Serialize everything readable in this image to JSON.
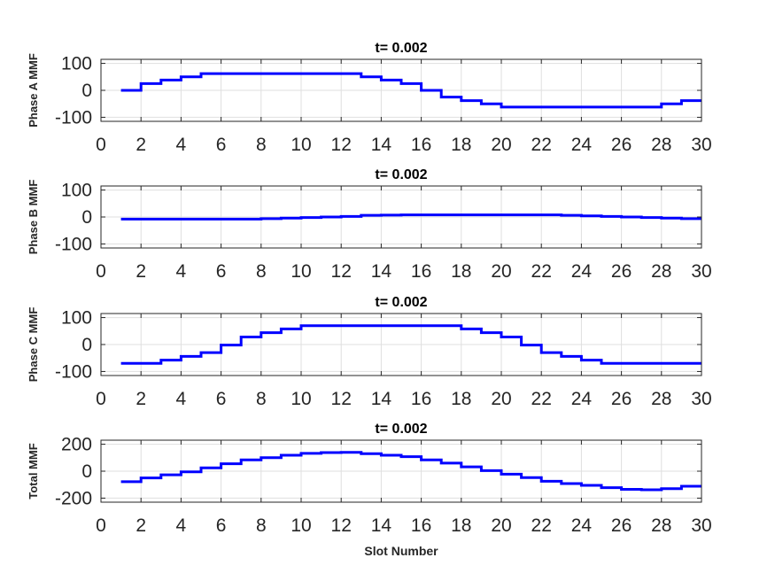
{
  "chart_data": [
    {
      "type": "line",
      "title": "t= 0.002",
      "ylabel": "Phase A MMF",
      "xlabel": "",
      "xlim": [
        0,
        30
      ],
      "ylim": [
        -115,
        115
      ],
      "xticks": [
        0,
        2,
        4,
        6,
        8,
        10,
        12,
        14,
        16,
        18,
        20,
        22,
        24,
        26,
        28,
        30
      ],
      "yticks": [
        -100,
        0,
        100
      ],
      "grid": true,
      "step": true,
      "color": "#0000ff",
      "x": [
        1,
        2,
        3,
        4,
        5,
        6,
        7,
        8,
        9,
        10,
        11,
        12,
        13,
        14,
        15,
        16,
        17,
        18,
        19,
        20,
        21,
        22,
        23,
        24,
        25,
        26,
        27,
        28,
        29,
        30
      ],
      "values": [
        0,
        25,
        38,
        50,
        62,
        62,
        62,
        62,
        62,
        62,
        62,
        62,
        50,
        38,
        25,
        0,
        -25,
        -38,
        -50,
        -62,
        -62,
        -62,
        -62,
        -62,
        -62,
        -62,
        -62,
        -50,
        -38,
        -38
      ]
    },
    {
      "type": "line",
      "title": "t= 0.002",
      "ylabel": "Phase B MMF",
      "xlabel": "",
      "xlim": [
        0,
        30
      ],
      "ylim": [
        -115,
        115
      ],
      "xticks": [
        0,
        2,
        4,
        6,
        8,
        10,
        12,
        14,
        16,
        18,
        20,
        22,
        24,
        26,
        28,
        30
      ],
      "yticks": [
        -100,
        0,
        100
      ],
      "grid": true,
      "step": true,
      "color": "#0000ff",
      "x": [
        1,
        2,
        3,
        4,
        5,
        6,
        7,
        8,
        9,
        10,
        11,
        12,
        13,
        14,
        15,
        16,
        17,
        18,
        19,
        20,
        21,
        22,
        23,
        24,
        25,
        26,
        27,
        28,
        29,
        30
      ],
      "values": [
        -8,
        -8,
        -8,
        -8,
        -8,
        -8,
        -8,
        -6,
        -4,
        -2,
        0,
        2,
        6,
        7,
        8,
        8,
        8,
        8,
        8,
        8,
        8,
        8,
        6,
        4,
        2,
        0,
        -2,
        -4,
        -6,
        -6
      ]
    },
    {
      "type": "line",
      "title": "t= 0.002",
      "ylabel": "Phase C MMF",
      "xlabel": "",
      "xlim": [
        0,
        30
      ],
      "ylim": [
        -115,
        115
      ],
      "xticks": [
        0,
        2,
        4,
        6,
        8,
        10,
        12,
        14,
        16,
        18,
        20,
        22,
        24,
        26,
        28,
        30
      ],
      "yticks": [
        -100,
        0,
        100
      ],
      "grid": true,
      "step": true,
      "color": "#0000ff",
      "x": [
        1,
        2,
        3,
        4,
        5,
        6,
        7,
        8,
        9,
        10,
        11,
        12,
        13,
        14,
        15,
        16,
        17,
        18,
        19,
        20,
        21,
        22,
        23,
        24,
        25,
        26,
        27,
        28,
        29,
        30
      ],
      "values": [
        -70,
        -70,
        -58,
        -44,
        -30,
        -2,
        28,
        44,
        58,
        70,
        70,
        70,
        70,
        70,
        70,
        70,
        70,
        58,
        44,
        28,
        -2,
        -30,
        -44,
        -58,
        -70,
        -70,
        -70,
        -70,
        -70,
        -70
      ]
    },
    {
      "type": "line",
      "title": "t= 0.002",
      "ylabel": "Total MMF",
      "xlabel": "Slot Number",
      "xlim": [
        0,
        30
      ],
      "ylim": [
        -230,
        230
      ],
      "xticks": [
        0,
        2,
        4,
        6,
        8,
        10,
        12,
        14,
        16,
        18,
        20,
        22,
        24,
        26,
        28,
        30
      ],
      "yticks": [
        -200,
        0,
        200
      ],
      "grid": true,
      "step": true,
      "color": "#0000ff",
      "x": [
        1,
        2,
        3,
        4,
        5,
        6,
        7,
        8,
        9,
        10,
        11,
        12,
        13,
        14,
        15,
        16,
        17,
        18,
        19,
        20,
        21,
        22,
        23,
        24,
        25,
        26,
        27,
        28,
        29,
        30
      ],
      "values": [
        -78,
        -50,
        -27,
        -5,
        25,
        55,
        84,
        100,
        118,
        132,
        138,
        140,
        130,
        118,
        108,
        84,
        60,
        32,
        4,
        -22,
        -48,
        -75,
        -92,
        -105,
        -122,
        -135,
        -138,
        -130,
        -112,
        -112
      ]
    }
  ]
}
